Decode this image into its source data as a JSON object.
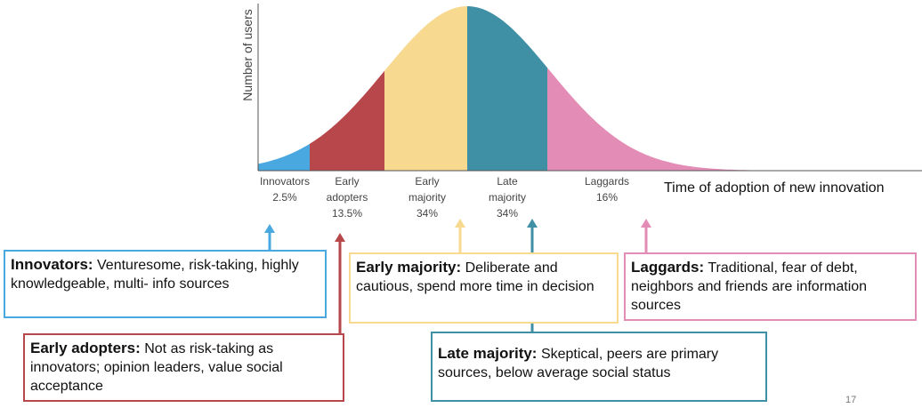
{
  "diagram": {
    "y_axis_label": "Number of users",
    "x_axis_label": "Time of adoption of new innovation",
    "segments": [
      {
        "name_lines": [
          "Innovators"
        ],
        "share": "2.5%",
        "color": "#4aa8e0"
      },
      {
        "name_lines": [
          "Early",
          "adopters"
        ],
        "share": "13.5%",
        "color": "#b8474b"
      },
      {
        "name_lines": [
          "Early",
          "majority"
        ],
        "share": "34%",
        "color": "#f7d98f"
      },
      {
        "name_lines": [
          "Late",
          "majority"
        ],
        "share": "34%",
        "color": "#3f8fa5"
      },
      {
        "name_lines": [
          "Laggards"
        ],
        "share": "16%",
        "color": "#e38cb6"
      }
    ],
    "boxes": [
      {
        "title": "Innovators:",
        "text": "Venturesome, risk-taking, highly knowledgeable, multi- info sources"
      },
      {
        "title": "Early adopters:",
        "text": "Not as risk-taking as innovators; opinion leaders, value social acceptance"
      },
      {
        "title": "Early majority:",
        "text": "Deliberate and cautious, spend more time in decision"
      },
      {
        "title": "Late majority:",
        "text": "Skeptical, peers are primary sources, below  average social status"
      },
      {
        "title": "Laggards:",
        "text": "Traditional, fear of debt, neighbors and friends are information sources"
      }
    ],
    "page_number": "17"
  }
}
